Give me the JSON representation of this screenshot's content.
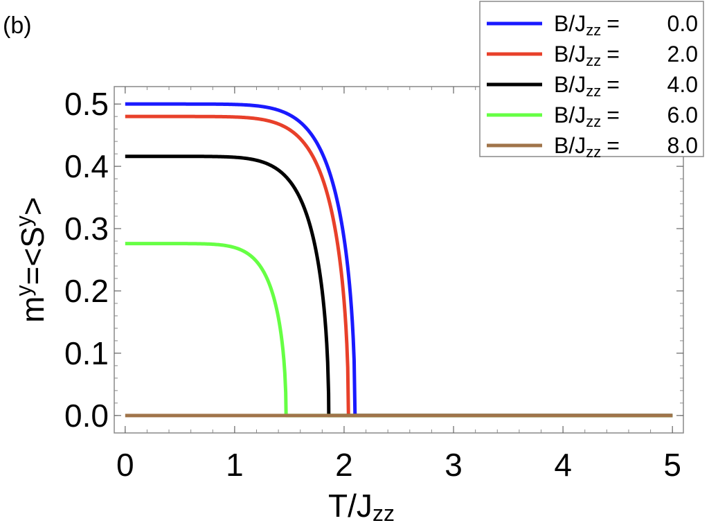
{
  "panel_label": "(b)",
  "chart_data": {
    "type": "line",
    "xlabel": {
      "main": "T/J",
      "sub": "zz"
    },
    "ylabel": {
      "main": "m",
      "sup1": "y",
      "mid": "=<S",
      "sup2": "y",
      "end": ">"
    },
    "xlim": [
      -0.1,
      5.1
    ],
    "ylim": [
      -0.028,
      0.528
    ],
    "xticks": [
      0,
      1,
      2,
      3,
      4,
      5
    ],
    "xtick_labels": [
      "0",
      "1",
      "2",
      "3",
      "4",
      "5"
    ],
    "yticks": [
      0.0,
      0.1,
      0.2,
      0.3,
      0.4,
      0.5
    ],
    "ytick_labels": [
      "0.0",
      "0.1",
      "0.2",
      "0.3",
      "0.4",
      "0.5"
    ],
    "grid": false,
    "legend": {
      "position": "top-right"
    },
    "series": [
      {
        "label_main": "B/J",
        "label_sub": "zz",
        "label_eq": "=",
        "label_value": "0.0",
        "color": "#1a1aff",
        "m0": 0.5,
        "tc": 2.1
      },
      {
        "label_main": "B/J",
        "label_sub": "zz",
        "label_eq": "=",
        "label_value": "2.0",
        "color": "#e8402a",
        "m0": 0.48,
        "tc": 2.04
      },
      {
        "label_main": "B/J",
        "label_sub": "zz",
        "label_eq": "=",
        "label_value": "4.0",
        "color": "#000000",
        "m0": 0.416,
        "tc": 1.86
      },
      {
        "label_main": "B/J",
        "label_sub": "zz",
        "label_eq": "=",
        "label_value": "6.0",
        "color": "#66ff44",
        "m0": 0.276,
        "tc": 1.47
      },
      {
        "label_main": "B/J",
        "label_sub": "zz",
        "label_eq": "=",
        "label_value": "8.0",
        "color": "#a0744a",
        "m0": 0.0,
        "tc": 0.0
      }
    ]
  }
}
